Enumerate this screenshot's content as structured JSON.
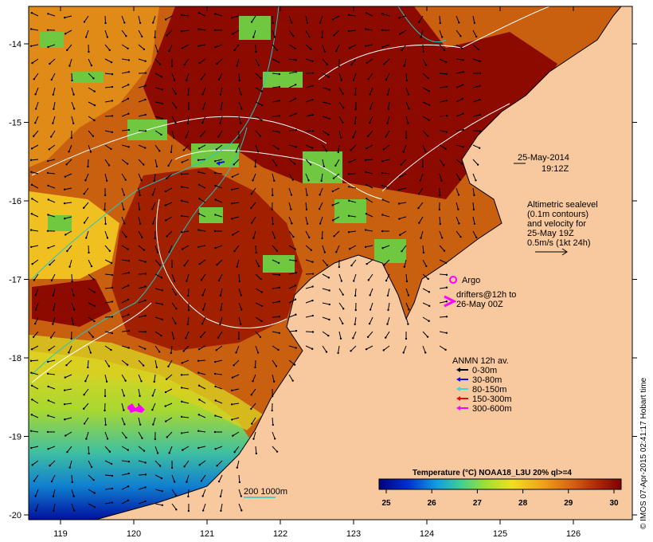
{
  "map": {
    "date": "25-May-2014",
    "time": "19:12Z",
    "altimetry_lines": [
      "Altimetric sealevel",
      "(0.1m contours)",
      "and velocity for",
      "25-May 19Z",
      "0.5m/s (1kt 24h)"
    ],
    "argo_label": "Argo",
    "drifters_lines": [
      "drifters@12h to",
      "26-May 00Z"
    ],
    "anmn_title": "ANMN 12h av.",
    "anmn_legend": [
      {
        "label": "0-30m",
        "color": "#000000"
      },
      {
        "label": "30-80m",
        "color": "#1010e0"
      },
      {
        "label": "80-150m",
        "color": "#40d8d8"
      },
      {
        "label": "150-300m",
        "color": "#e01010"
      },
      {
        "label": "300-600m",
        "color": "#ff00ff"
      }
    ],
    "depth_contours_label": "200  1000m",
    "colorbar_title": "Temperature (°C) NOAA18_L3U 20% ql>=4",
    "colorbar_ticks": [
      "25",
      "26",
      "27",
      "28",
      "29",
      "30"
    ],
    "lon_ticks": [
      "119",
      "120",
      "121",
      "122",
      "123",
      "124",
      "125",
      "126"
    ],
    "lat_ticks": [
      "-14",
      "-15",
      "-16",
      "-17",
      "-18",
      "-19",
      "-20"
    ],
    "credit": "© IMOS 07-Apr-2015 02:41:17 Hobart time",
    "colors": {
      "land": "#f8c89e",
      "sst_warm": "#8c0a00",
      "sst_mid": "#c85a0a",
      "sst_orange": "#e89a18",
      "sst_yellow": "#f0d020",
      "sst_green": "#90d040",
      "sst_cool": "#10a0d0",
      "sst_cold": "#0000a0",
      "argo": "#ff00ff"
    }
  }
}
